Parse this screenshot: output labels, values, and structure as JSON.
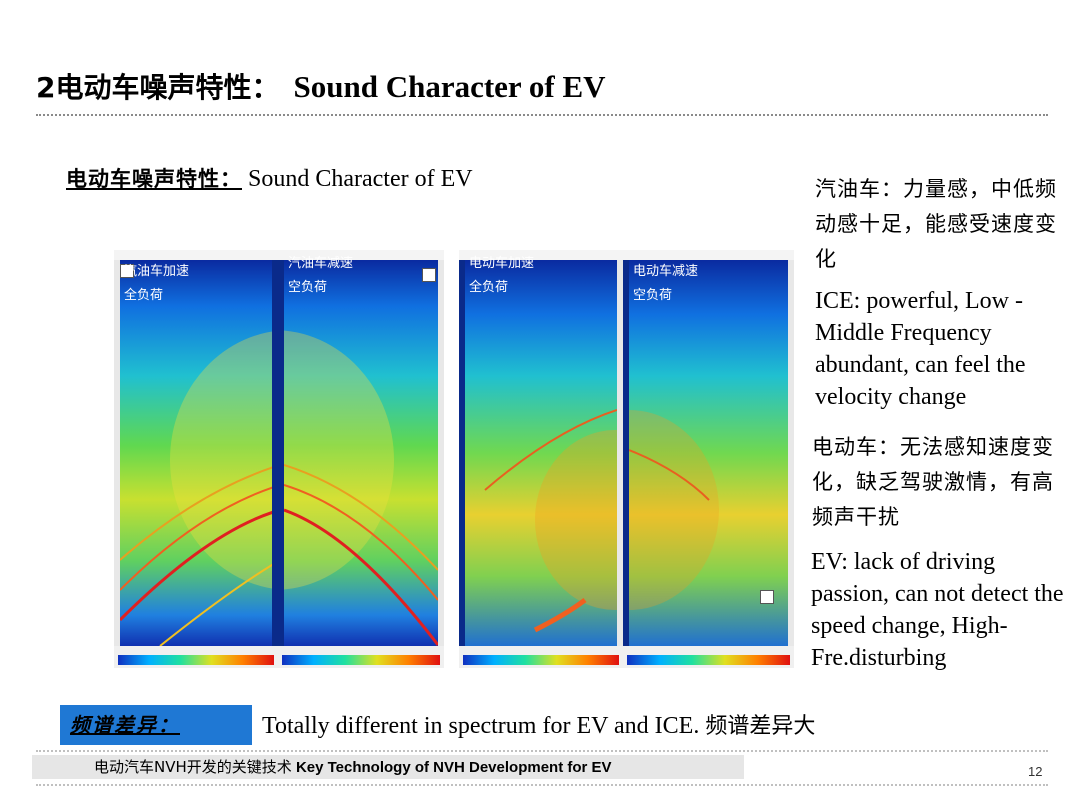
{
  "slide": {
    "title_cn": "2电动车噪声特性：",
    "title_en": "Sound Character of  EV",
    "subtitle_cn": "电动车噪声特性：",
    "subtitle_en": "Sound Character of  EV",
    "page_number": "12"
  },
  "spectrograms": [
    {
      "label_line1": "汽油车加速",
      "label_line2": "全负荷"
    },
    {
      "label_line1": "汽油车减速",
      "label_line2": "空负荷"
    },
    {
      "label_line1": "电动车加速",
      "label_line2": "全负荷"
    },
    {
      "label_line1": "电动车减速",
      "label_line2": "空负荷"
    }
  ],
  "notes": {
    "ice_cn": "汽油车：力量感，中低频动感十足，能感受速度变化",
    "ice_en": "ICE: powerful, Low -Middle Frequency abundant, can feel the velocity change",
    "ev_cn": "电动车：无法感知速度变化，缺乏驾驶激情，有高频声干扰",
    "ev_en": "EV: lack of driving passion, can not detect the speed change, High-Fre.disturbing"
  },
  "difference": {
    "label": "频谱差异：",
    "text_en": "Totally different in spectrum for EV and ICE.",
    "text_cn": "频谱差异大"
  },
  "footer": {
    "text_cn": "电动汽车NVH开发的关键技术",
    "text_en": "Key Technology of NVH Development for EV"
  },
  "colors": {
    "accent_blue": "#1f78d4",
    "spectrum_low": "#0a2a8a",
    "spectrum_high": "#e01010"
  }
}
